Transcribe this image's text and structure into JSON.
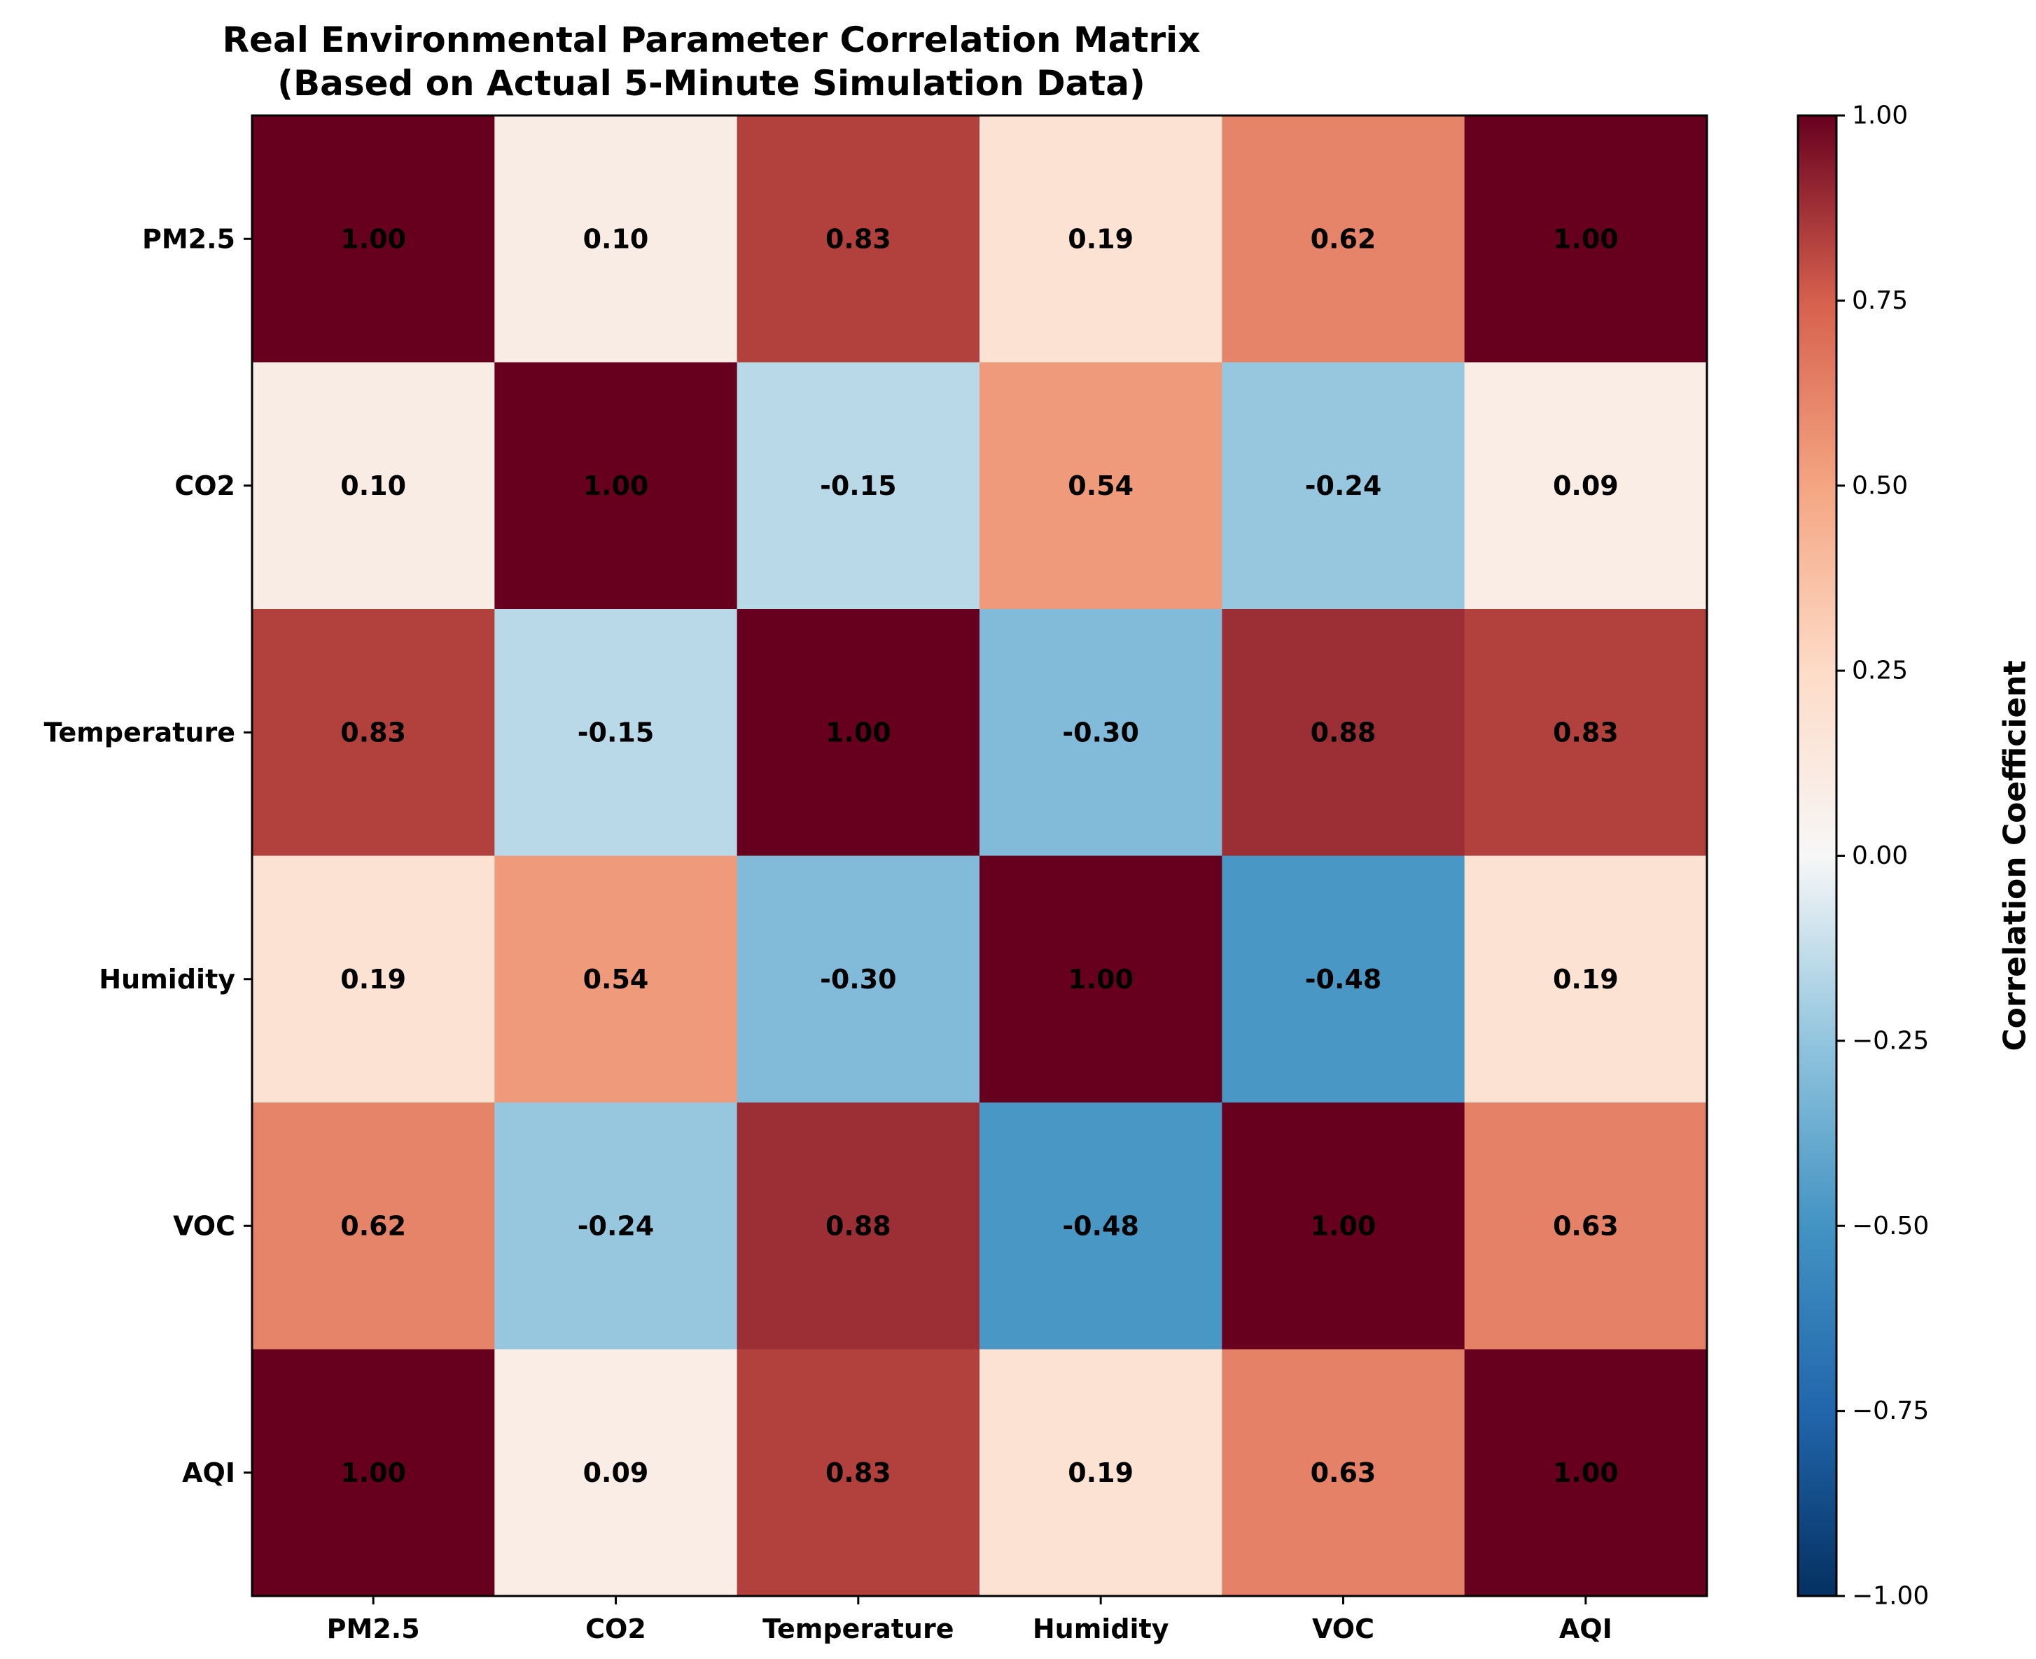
{
  "chart_data": {
    "type": "heatmap",
    "title": "Real Environmental Parameter Correlation Matrix",
    "subtitle": "(Based on Actual 5-Minute Simulation Data)",
    "rows": [
      "PM2.5",
      "CO2",
      "Temperature",
      "Humidity",
      "VOC",
      "AQI"
    ],
    "columns": [
      "PM2.5",
      "CO2",
      "Temperature",
      "Humidity",
      "VOC",
      "AQI"
    ],
    "values": [
      [
        1.0,
        0.1,
        0.83,
        0.19,
        0.62,
        1.0
      ],
      [
        0.1,
        1.0,
        -0.15,
        0.54,
        -0.24,
        0.09
      ],
      [
        0.83,
        -0.15,
        1.0,
        -0.3,
        0.88,
        0.83
      ],
      [
        0.19,
        0.54,
        -0.3,
        1.0,
        -0.48,
        0.19
      ],
      [
        0.62,
        -0.24,
        0.88,
        -0.48,
        1.0,
        0.63
      ],
      [
        1.0,
        0.09,
        0.83,
        0.19,
        0.63,
        1.0
      ]
    ],
    "value_labels": [
      [
        "1.00",
        "0.10",
        "0.83",
        "0.19",
        "0.62",
        "1.00"
      ],
      [
        "0.10",
        "1.00",
        "-0.15",
        "0.54",
        "-0.24",
        "0.09"
      ],
      [
        "0.83",
        "-0.15",
        "1.00",
        "-0.30",
        "0.88",
        "0.83"
      ],
      [
        "0.19",
        "0.54",
        "-0.30",
        "1.00",
        "-0.48",
        "0.19"
      ],
      [
        "0.62",
        "-0.24",
        "0.88",
        "-0.48",
        "1.00",
        "0.63"
      ],
      [
        "1.00",
        "0.09",
        "0.83",
        "0.19",
        "0.63",
        "1.00"
      ]
    ],
    "colormap": "RdBu_r",
    "vmin": -1.0,
    "vmax": 1.0,
    "colorbar_label": "Correlation Coefficient",
    "colorbar_ticks": [
      1.0,
      0.75,
      0.5,
      0.25,
      0.0,
      -0.25,
      -0.5,
      -0.75,
      -1.0
    ],
    "colorbar_tick_labels": [
      "1.00",
      "0.75",
      "0.50",
      "0.25",
      "0.00",
      "−0.25",
      "−0.50",
      "−0.75",
      "−1.00"
    ],
    "colorbar_placement": "right",
    "grid": false
  }
}
